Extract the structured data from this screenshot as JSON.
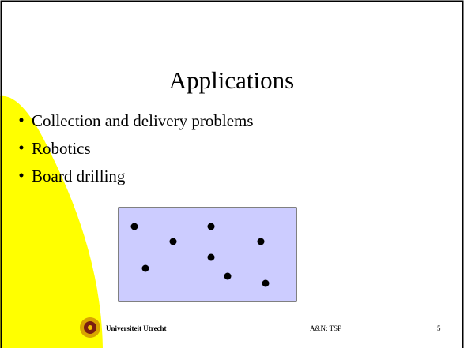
{
  "slide": {
    "title": "Applications",
    "bullets": [
      "Collection and delivery problems",
      "Robotics",
      "Board drilling"
    ],
    "footer": {
      "institution": "Universiteit Utrecht",
      "course": "A&N: TSP",
      "page": "5"
    }
  }
}
